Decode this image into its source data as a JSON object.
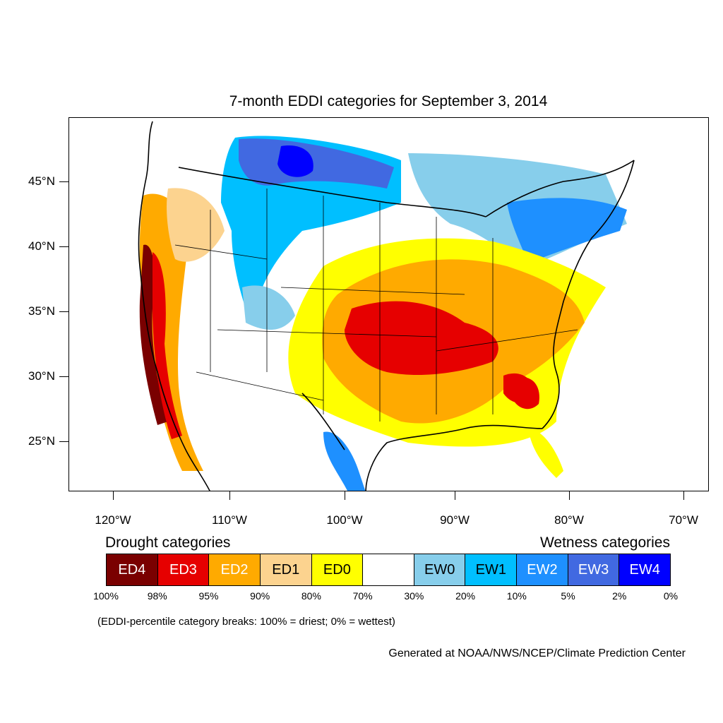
{
  "title": "7-month EDDI categories for September 3, 2014",
  "latitude_labels": [
    "45°N",
    "40°N",
    "35°N",
    "30°N",
    "25°N"
  ],
  "longitude_labels": [
    "120°W",
    "110°W",
    "100°W",
    "90°W",
    "80°W",
    "70°W"
  ],
  "legend": {
    "drought_title": "Drought categories",
    "wetness_title": "Wetness categories",
    "categories": [
      {
        "label": "ED4",
        "color": "#7a0000",
        "text_color": "#ffffff"
      },
      {
        "label": "ED3",
        "color": "#e60000",
        "text_color": "#ffffff"
      },
      {
        "label": "ED2",
        "color": "#ffaa00",
        "text_color": "#ffffff"
      },
      {
        "label": "ED1",
        "color": "#fcd38f",
        "text_color": "#000000"
      },
      {
        "label": "ED0",
        "color": "#ffff00",
        "text_color": "#000000"
      },
      {
        "label": "",
        "color": "#ffffff",
        "text_color": "#000000"
      },
      {
        "label": "EW0",
        "color": "#87ceeb",
        "text_color": "#000000"
      },
      {
        "label": "EW1",
        "color": "#00bfff",
        "text_color": "#000000"
      },
      {
        "label": "EW2",
        "color": "#1e90ff",
        "text_color": "#ffffff"
      },
      {
        "label": "EW3",
        "color": "#4169e1",
        "text_color": "#ffffff"
      },
      {
        "label": "EW4",
        "color": "#0000ff",
        "text_color": "#ffffff"
      }
    ],
    "percentiles": [
      "100%",
      "98%",
      "95%",
      "90%",
      "80%",
      "70%",
      "30%",
      "20%",
      "10%",
      "5%",
      "2%",
      "0%"
    ]
  },
  "note": "(EDDI-percentile category breaks: 100% = driest; 0% = wettest)",
  "credit": "Generated at NOAA/NWS/NCEP/Climate Prediction Center",
  "colors": {
    "ED4": "#7a0000",
    "ED3": "#e60000",
    "ED2": "#ffaa00",
    "ED1": "#fcd38f",
    "ED0": "#ffff00",
    "EW0": "#87ceeb",
    "EW1": "#00bfff",
    "EW2": "#1e90ff",
    "EW3": "#4169e1",
    "EW4": "#0000ff"
  }
}
